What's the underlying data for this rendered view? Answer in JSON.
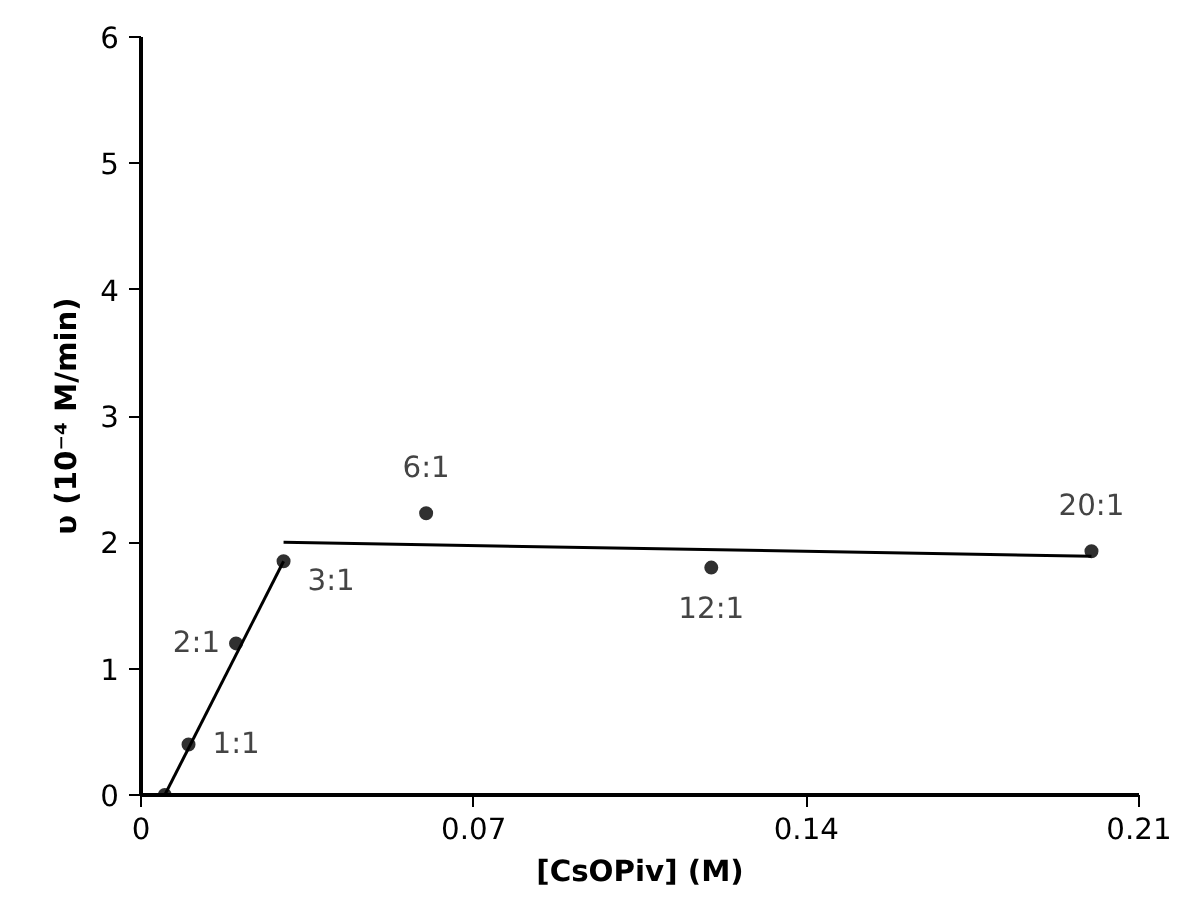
{
  "chart_data": {
    "type": "scatter",
    "xlabel": "[CsOPiv] (M)",
    "ylabel": "υ (10⁻⁴ M/min)",
    "xlim": [
      0,
      0.21
    ],
    "ylim": [
      0,
      6
    ],
    "xticks": [
      0,
      0.07,
      0.14,
      0.21
    ],
    "yticks": [
      0,
      1,
      2,
      3,
      4,
      5,
      6
    ],
    "grid": false,
    "marker": "circle",
    "series": [
      {
        "color": "#303030",
        "x": [
          0.005,
          0.01,
          0.02,
          0.03,
          0.06,
          0.12,
          0.2
        ],
        "values": [
          0,
          0.4,
          1.2,
          1.85,
          2.23,
          1.8,
          1.93
        ]
      },
      {
        "type": "line",
        "color": "#000000",
        "x": [
          0.005,
          0.03
        ],
        "values": [
          0,
          1.85
        ],
        "marker": "none",
        "line_style": "solid"
      },
      {
        "type": "line",
        "color": "#000000",
        "x": [
          0.03,
          0.2
        ],
        "values": [
          2.0,
          1.89
        ],
        "marker": "none",
        "line_style": "solid"
      }
    ],
    "annotations": [
      {
        "text": "1:1",
        "x": 0.01,
        "y": 0.4
      },
      {
        "text": "2:1",
        "x": 0.02,
        "y": 1.2
      },
      {
        "text": "3:1",
        "x": 0.03,
        "y": 1.85
      },
      {
        "text": "6:1",
        "x": 0.06,
        "y": 2.23
      },
      {
        "text": "12:1",
        "x": 0.12,
        "y": 1.8
      },
      {
        "text": "20:1",
        "x": 0.2,
        "y": 1.93
      }
    ]
  }
}
